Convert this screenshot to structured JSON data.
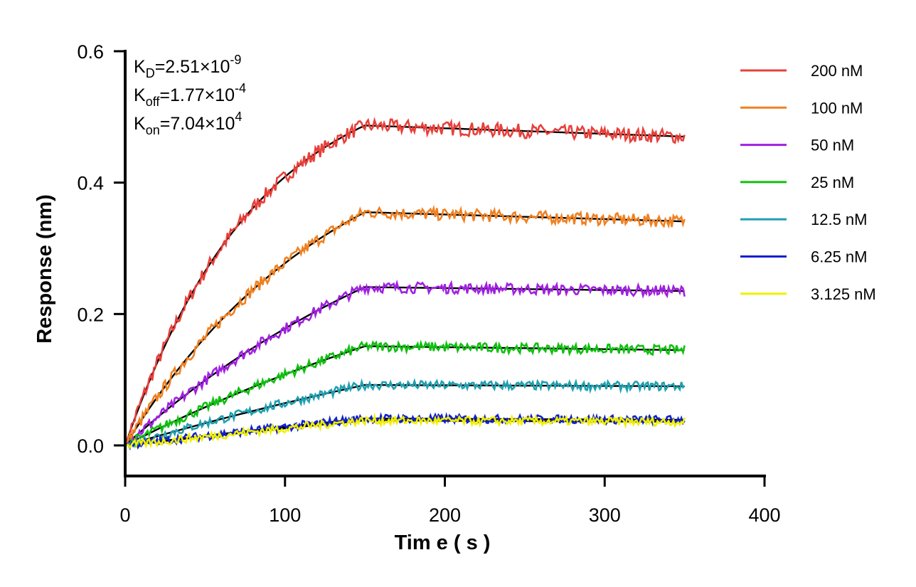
{
  "chart_data": {
    "type": "line",
    "title": "",
    "xlabel": "Tim e ( s )",
    "ylabel": "Response (nm)",
    "xlim": [
      0,
      400
    ],
    "ylim": [
      -0.05,
      0.6
    ],
    "xticks": [
      "0",
      "100",
      "200",
      "300",
      "400"
    ],
    "yticks": [
      "0.0",
      "0.2",
      "0.4",
      "0.6"
    ],
    "grid": false,
    "legend_position": "right",
    "association_end": 150,
    "x_end": 350,
    "annotations": [
      {
        "name": "K",
        "sub": "D",
        "value": "=2.51×10",
        "exp": "-9"
      },
      {
        "name": "K",
        "sub": "off",
        "value": "=1.77×10",
        "exp": "-4"
      },
      {
        "name": "K",
        "sub": "on",
        "value": "=7.04×10",
        "exp": "4"
      }
    ],
    "fit_color": "#000000",
    "series": [
      {
        "name": "200 nM",
        "color": "#e8403a",
        "plateau": 0.487,
        "kobs": 0.0122,
        "end": 0.47
      },
      {
        "name": "100 nM",
        "color": "#f08020",
        "plateau": 0.355,
        "kobs": 0.0075,
        "end": 0.341
      },
      {
        "name": "50 nM",
        "color": "#a020e0",
        "plateau": 0.241,
        "kobs": 0.0045,
        "end": 0.235
      },
      {
        "name": "25 nM",
        "color": "#10c010",
        "plateau": 0.151,
        "kobs": 0.003,
        "end": 0.145
      },
      {
        "name": "12.5 nM",
        "color": "#20a0b0",
        "plateau": 0.092,
        "kobs": 0.002,
        "end": 0.09
      },
      {
        "name": "6.25 nM",
        "color": "#1020d0",
        "plateau": 0.041,
        "kobs": 0.0012,
        "end": 0.039
      },
      {
        "name": "3.125 nM",
        "color": "#f0f000",
        "plateau": 0.038,
        "kobs": 0.001,
        "end": 0.036
      }
    ]
  }
}
